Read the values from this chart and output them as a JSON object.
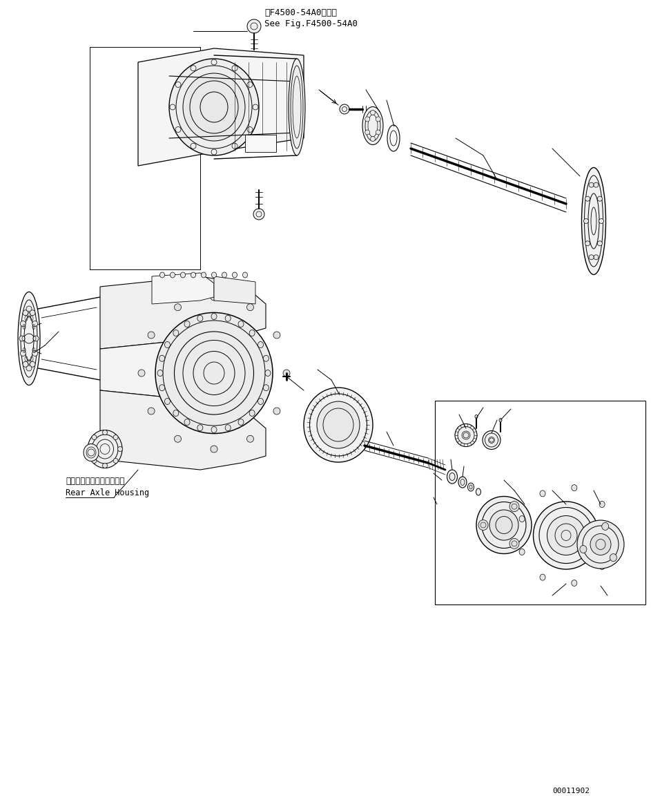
{
  "fig_width": 9.43,
  "fig_height": 11.58,
  "bg_color": "#ffffff",
  "lc": "#000000",
  "title1": "第F4500-54A0図参照",
  "title2": "See Fig.F4500-54A0",
  "label_jp": "リヤーアクスルハウジング",
  "label_en": "Rear Axle Housing",
  "part_number": "00011902"
}
